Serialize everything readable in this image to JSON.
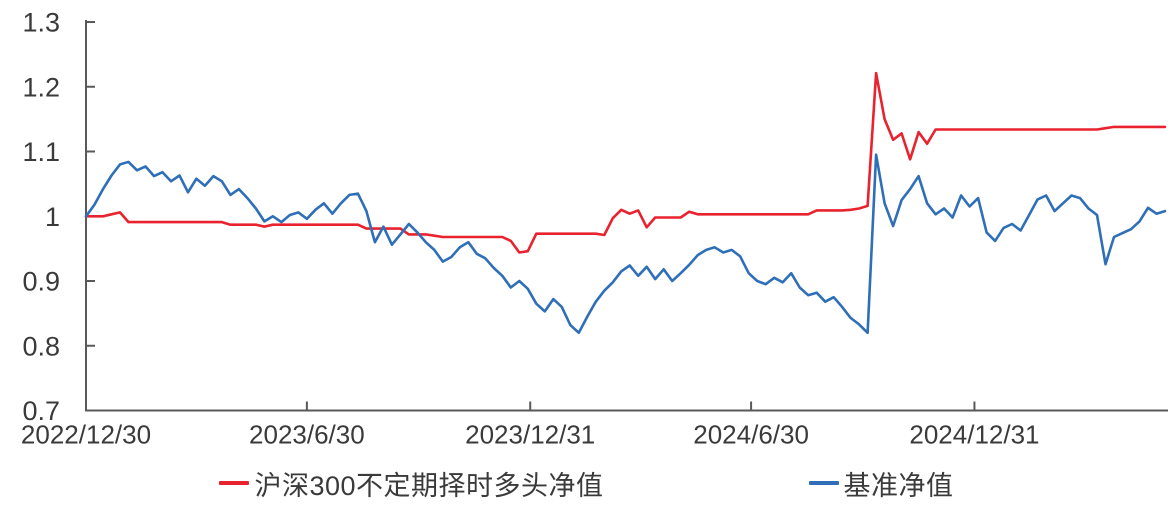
{
  "chart_data": {
    "type": "line",
    "title": "",
    "grid": false,
    "legend_position": "bottom-center",
    "x_axis": {
      "start_label": "2022/12/30",
      "ticks": [
        {
          "label": "2022/12/30",
          "pos": 0.0
        },
        {
          "label": "2023/6/30",
          "pos": 0.2047
        },
        {
          "label": "2023/12/31",
          "pos": 0.4117
        },
        {
          "label": "2024/6/30",
          "pos": 0.6164
        },
        {
          "label": "2024/12/31",
          "pos": 0.8234
        }
      ]
    },
    "y_axis": {
      "min": 0.7,
      "max": 1.3,
      "ticks": [
        {
          "label": "0.7",
          "value": 0.7
        },
        {
          "label": "0.8",
          "value": 0.8
        },
        {
          "label": "0.9",
          "value": 0.9
        },
        {
          "label": "1",
          "value": 1.0
        },
        {
          "label": "1.1",
          "value": 1.1
        },
        {
          "label": "1.2",
          "value": 1.2
        },
        {
          "label": "1.3",
          "value": 1.3
        }
      ]
    },
    "series": [
      {
        "name": "沪深300不定期择时多头净值",
        "color": "#e8232f",
        "values": [
          1.0,
          1.0,
          1.0,
          1.003,
          1.006,
          0.991,
          0.991,
          0.991,
          0.991,
          0.991,
          0.991,
          0.991,
          0.991,
          0.991,
          0.991,
          0.991,
          0.991,
          0.987,
          0.987,
          0.987,
          0.987,
          0.984,
          0.987,
          0.987,
          0.987,
          0.987,
          0.987,
          0.987,
          0.987,
          0.987,
          0.987,
          0.987,
          0.987,
          0.981,
          0.981,
          0.981,
          0.981,
          0.981,
          0.972,
          0.972,
          0.972,
          0.97,
          0.968,
          0.968,
          0.968,
          0.968,
          0.968,
          0.968,
          0.968,
          0.968,
          0.962,
          0.944,
          0.946,
          0.973,
          0.973,
          0.973,
          0.973,
          0.973,
          0.973,
          0.973,
          0.973,
          0.971,
          0.997,
          1.01,
          1.004,
          1.009,
          0.983,
          0.998,
          0.998,
          0.998,
          0.998,
          1.007,
          1.003,
          1.003,
          1.003,
          1.003,
          1.003,
          1.003,
          1.003,
          1.003,
          1.003,
          1.003,
          1.003,
          1.003,
          1.003,
          1.003,
          1.009,
          1.009,
          1.009,
          1.009,
          1.01,
          1.012,
          1.016,
          1.221,
          1.15,
          1.118,
          1.128,
          1.088,
          1.13,
          1.112,
          1.134,
          1.134,
          1.134,
          1.134,
          1.134,
          1.134,
          1.134,
          1.134,
          1.134,
          1.134,
          1.134,
          1.134,
          1.134,
          1.134,
          1.134,
          1.134,
          1.134,
          1.134,
          1.134,
          1.134,
          1.136,
          1.138,
          1.138,
          1.138,
          1.138,
          1.138,
          1.138,
          1.138
        ]
      },
      {
        "name": "基准净值",
        "color": "#2e6fb7",
        "values": [
          1.0,
          1.018,
          1.042,
          1.063,
          1.08,
          1.084,
          1.071,
          1.077,
          1.062,
          1.068,
          1.054,
          1.063,
          1.037,
          1.058,
          1.047,
          1.062,
          1.054,
          1.033,
          1.042,
          1.028,
          1.012,
          0.992,
          1.0,
          0.991,
          1.002,
          1.006,
          0.996,
          1.01,
          1.02,
          1.004,
          1.02,
          1.033,
          1.035,
          1.008,
          0.96,
          0.984,
          0.956,
          0.972,
          0.988,
          0.975,
          0.96,
          0.948,
          0.93,
          0.937,
          0.952,
          0.96,
          0.942,
          0.935,
          0.92,
          0.908,
          0.89,
          0.9,
          0.888,
          0.865,
          0.853,
          0.872,
          0.86,
          0.832,
          0.82,
          0.845,
          0.868,
          0.885,
          0.898,
          0.915,
          0.924,
          0.908,
          0.922,
          0.903,
          0.918,
          0.9,
          0.912,
          0.925,
          0.94,
          0.948,
          0.952,
          0.944,
          0.948,
          0.938,
          0.912,
          0.9,
          0.895,
          0.905,
          0.898,
          0.912,
          0.89,
          0.878,
          0.882,
          0.868,
          0.875,
          0.86,
          0.843,
          0.833,
          0.82,
          1.095,
          1.02,
          0.985,
          1.025,
          1.042,
          1.062,
          1.02,
          1.003,
          1.012,
          0.998,
          1.032,
          1.015,
          1.028,
          0.975,
          0.962,
          0.982,
          0.988,
          0.978,
          1.002,
          1.026,
          1.032,
          1.008,
          1.02,
          1.032,
          1.028,
          1.012,
          1.002,
          0.926,
          0.968,
          0.974,
          0.98,
          0.992,
          1.013,
          1.004,
          1.008
        ]
      }
    ]
  },
  "colors": {
    "axis": "#595959",
    "tick_text": "#3a3a3a",
    "background": "#ffffff"
  }
}
